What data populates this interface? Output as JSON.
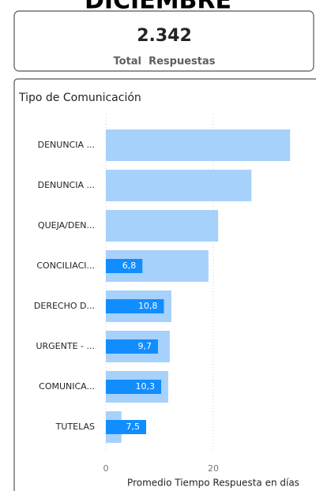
{
  "header": {
    "title": "DICIEMBRE"
  },
  "card": {
    "value": "2.342",
    "label": "Total  Respuestas"
  },
  "chart_data": {
    "type": "bar",
    "orientation": "horizontal",
    "title": "Tipo de Comunicación",
    "x_label": "Promedio Tiempo Respuesta en días",
    "categories": [
      "DENUNCIA ...",
      "DENUNCIA ...",
      "QUEJA/DEN...",
      "CONCILIACI...",
      "DERECHO D...",
      "URGENTE - ...",
      "COMUNICA...",
      "TUTELAS"
    ],
    "series": [
      {
        "color": "#a6d1fb",
        "values": [
          34.3,
          27.1,
          20.9,
          19.1,
          12.2,
          11.9,
          11.6,
          2.9
        ]
      },
      {
        "color": "#118dff",
        "values": [
          null,
          null,
          null,
          6.8,
          10.8,
          9.7,
          10.3,
          7.5
        ],
        "value_labels": [
          null,
          null,
          null,
          "6,8",
          "10,8",
          "9,7",
          "10,3",
          "7,5"
        ]
      }
    ],
    "xlim": [
      0,
      39
    ],
    "xticks": [
      0,
      20
    ],
    "grid": true
  }
}
